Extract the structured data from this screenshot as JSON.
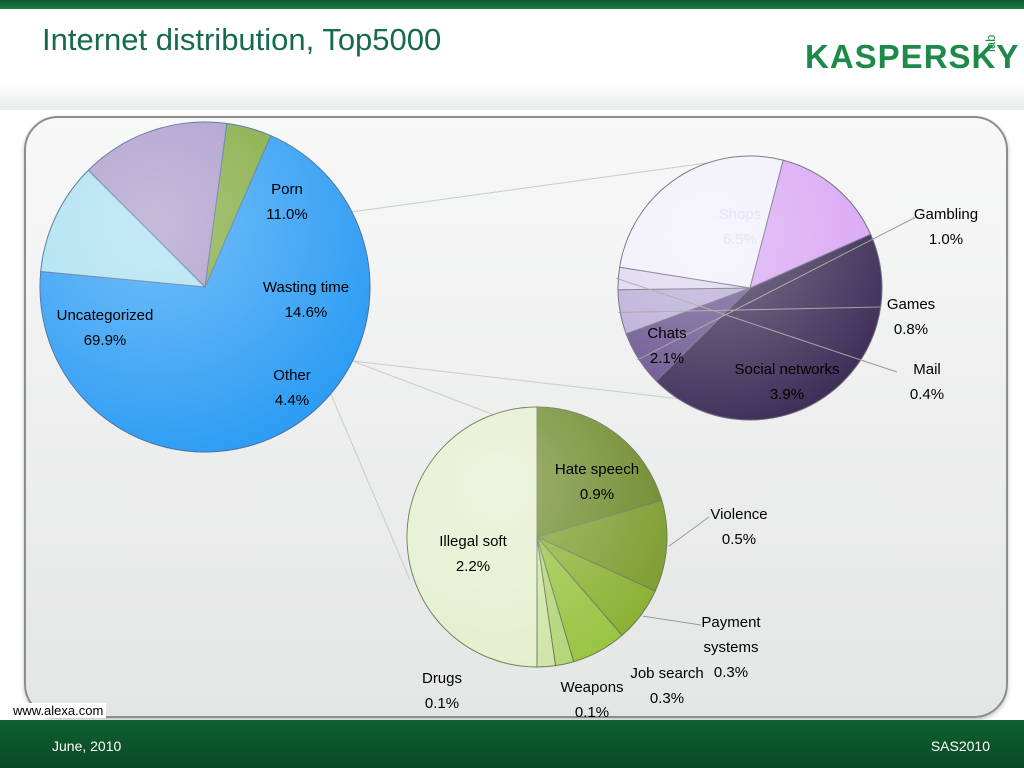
{
  "header": {
    "title": "Internet distribution, Top5000",
    "logo_text": "KASPERSKY",
    "logo_tail": "lab"
  },
  "footer": {
    "date": "June, 2010",
    "event": "SAS2010",
    "source": "www.alexa.com"
  },
  "colors": {
    "brand_green": "#1d8a4a",
    "footer_green": "#0f5f31",
    "title_green": "#176b4d"
  },
  "chart_data": [
    {
      "type": "pie",
      "slices": [
        {
          "label": "Uncategorized",
          "value": 69.9,
          "display": "69.9%",
          "color": "#2c9cf4"
        },
        {
          "label": "Porn",
          "value": 11.0,
          "display": "11.0%",
          "color": "#a8dff0"
        },
        {
          "label": "Wasting time",
          "value": 14.6,
          "display": "14.6%",
          "color": "#a896c8"
        },
        {
          "label": "Other",
          "value": 4.4,
          "display": "4.4%",
          "color": "#7fa83a"
        }
      ]
    },
    {
      "type": "pie",
      "slices": [
        {
          "label": "Shops",
          "value": 6.5,
          "display": "6.5%",
          "color": "#3e2f58"
        },
        {
          "label": "Gambling",
          "value": 1.0,
          "display": "1.0%",
          "color": "#6a5590"
        },
        {
          "label": "Games",
          "value": 0.8,
          "display": "0.8%",
          "color": "#b8acd6"
        },
        {
          "label": "Mail",
          "value": 0.4,
          "display": "0.4%",
          "color": "#ddd6ef"
        },
        {
          "label": "Social networks",
          "value": 3.9,
          "display": "3.9%",
          "color": "#f1eefa"
        },
        {
          "label": "Chats",
          "value": 2.1,
          "display": "2.1%",
          "color": "#d9a6f4"
        }
      ]
    },
    {
      "type": "pie",
      "slices": [
        {
          "label": "Hate speech",
          "value": 0.9,
          "display": "0.9%",
          "color": "#6f8a2c"
        },
        {
          "label": "Violence",
          "value": 0.5,
          "display": "0.5%",
          "color": "#7e9d30"
        },
        {
          "label": "Payment systems",
          "value": 0.3,
          "display": "0.3%",
          "color": "#8bb235"
        },
        {
          "label": "Job search",
          "value": 0.3,
          "display": "0.3%",
          "color": "#99c443"
        },
        {
          "label": "Weapons",
          "value": 0.1,
          "display": "0.1%",
          "color": "#b3d579"
        },
        {
          "label": "Drugs",
          "value": 0.1,
          "display": "0.1%",
          "color": "#cfe4a8"
        },
        {
          "label": "Illegal soft",
          "value": 2.2,
          "display": "2.2%",
          "color": "#e3efcd"
        }
      ]
    }
  ]
}
